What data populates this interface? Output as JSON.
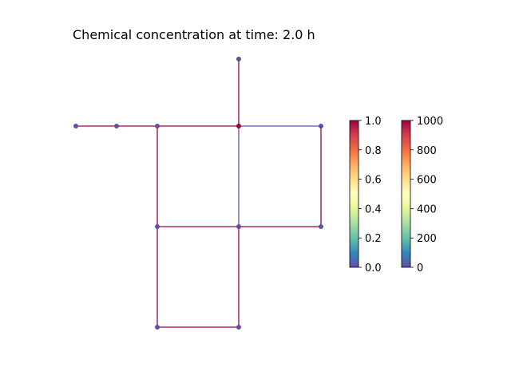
{
  "title": "Chemical concentration at time: 2.0 h",
  "colors": {
    "pipe_high": "#9e0142",
    "pipe_low": "#5e4fa2",
    "node_high": "#9e0142",
    "node_low": "#5e4fa2"
  },
  "network": {
    "nodes": [
      {
        "id": "n1",
        "label": "",
        "level": "low"
      },
      {
        "id": "n2",
        "label": "",
        "level": "low"
      },
      {
        "id": "n3",
        "label": "",
        "level": "low"
      },
      {
        "id": "n4",
        "label": "",
        "level": "high"
      },
      {
        "id": "n5",
        "label": "",
        "level": "low"
      },
      {
        "id": "n6",
        "label": "",
        "level": "low"
      },
      {
        "id": "n7",
        "label": "",
        "level": "low"
      },
      {
        "id": "n8",
        "label": "",
        "level": "low"
      },
      {
        "id": "n9",
        "label": "",
        "level": "low"
      },
      {
        "id": "n10",
        "label": "",
        "level": "low"
      },
      {
        "id": "n11",
        "label": "",
        "level": "low"
      }
    ],
    "links": [
      {
        "from": "n1",
        "to": "n2",
        "level": "high"
      },
      {
        "from": "n2",
        "to": "n3",
        "level": "high"
      },
      {
        "from": "n3",
        "to": "n4",
        "level": "high"
      },
      {
        "from": "n4",
        "to": "n5",
        "level": "low"
      },
      {
        "from": "n6",
        "to": "n4",
        "level": "high"
      },
      {
        "from": "n3",
        "to": "n7",
        "level": "high"
      },
      {
        "from": "n4",
        "to": "n8",
        "level": "low"
      },
      {
        "from": "n5",
        "to": "n9",
        "level": "high"
      },
      {
        "from": "n7",
        "to": "n8",
        "level": "high"
      },
      {
        "from": "n8",
        "to": "n9",
        "level": "high"
      },
      {
        "from": "n7",
        "to": "n10",
        "level": "high"
      },
      {
        "from": "n8",
        "to": "n11",
        "level": "high"
      },
      {
        "from": "n10",
        "to": "n11",
        "level": "high"
      }
    ]
  },
  "colorbars": [
    {
      "name": "node-colorbar",
      "min": 0.0,
      "max": 1.0,
      "ticks": [
        "0.0",
        "0.2",
        "0.4",
        "0.6",
        "0.8",
        "1.0"
      ]
    },
    {
      "name": "link-colorbar",
      "min": 0,
      "max": 1000,
      "ticks": [
        "0",
        "200",
        "400",
        "600",
        "800",
        "1000"
      ]
    }
  ]
}
